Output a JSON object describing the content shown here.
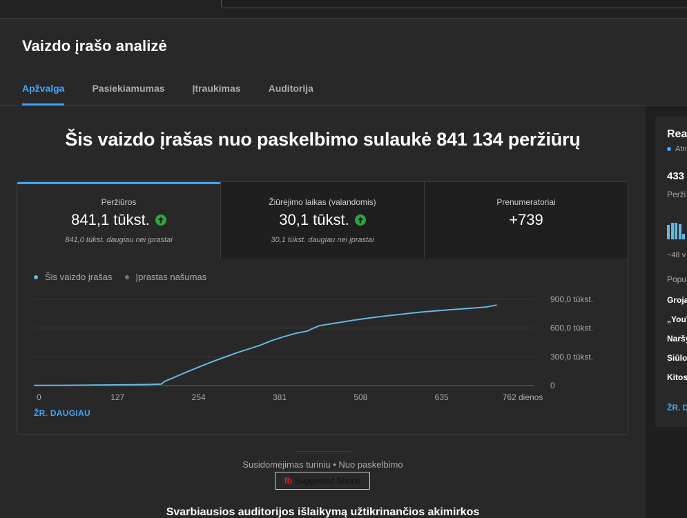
{
  "header": {
    "title": "Vaizdo įrašo analizė",
    "tabs": [
      {
        "label": "Apžvalga",
        "active": true
      },
      {
        "label": "Pasiekiamumas",
        "active": false
      },
      {
        "label": "Įtraukimas",
        "active": false
      },
      {
        "label": "Auditorija",
        "active": false
      }
    ]
  },
  "headline": "Šis vaizdo įrašas nuo paskelbimo sulaukė 841 134 peržiūrų",
  "metrics": [
    {
      "label": "Peržiūros",
      "value": "841,1 tūkst.",
      "sub": "841,0 tūkst. daugiau nei įprastai",
      "trend_icon": "arrow-up-icon"
    },
    {
      "label": "Žiūrėjimo laikas (valandomis)",
      "value": "30,1 tūkst.",
      "sub": "30,1 tūkst. daugiau nei įprastai",
      "trend_icon": "arrow-up-icon"
    },
    {
      "label": "Prenumeratoriai",
      "value": "+739",
      "sub": ""
    }
  ],
  "legend": {
    "this_video": "Šis vaizdo įrašas",
    "typical": "Įprastas našumas"
  },
  "chart_data": {
    "type": "line",
    "x_tick_labels": [
      "0",
      "127",
      "254",
      "381",
      "508",
      "635",
      "762 dienos"
    ],
    "y_tick_labels": [
      "0",
      "300,0 tūkst.",
      "600,0 tūkst.",
      "900,0 tūkst."
    ],
    "xlim": [
      0,
      840
    ],
    "ylim": [
      0,
      900000
    ],
    "grid": true,
    "legend_position": "top-left",
    "series": [
      {
        "name": "Šis vaizdo įrašas",
        "color": "#65b8e0",
        "x": [
          0,
          50,
          100,
          150,
          180,
          200,
          214,
          220,
          230,
          245,
          260,
          280,
          300,
          320,
          340,
          360,
          380,
          400,
          420,
          440,
          460,
          470,
          480,
          500,
          520,
          540,
          560,
          580,
          600,
          620,
          640,
          660,
          680,
          700,
          720,
          740,
          760,
          778
        ],
        "y": [
          2000,
          3000,
          5000,
          8000,
          10000,
          12000,
          15000,
          45000,
          70000,
          110000,
          150000,
          200000,
          250000,
          295000,
          340000,
          380000,
          420000,
          470000,
          510000,
          545000,
          570000,
          600000,
          625000,
          645000,
          665000,
          685000,
          702000,
          718000,
          732000,
          746000,
          760000,
          772000,
          782000,
          792000,
          801000,
          810000,
          820000,
          841134
        ]
      }
    ]
  },
  "see_more_label": "ŽR. DAUGIAU",
  "engagement": {
    "text": "Susidomėjimas turiniu • Nuo paskelbimo",
    "button_logo": "fb",
    "button_label": "Suggested Shorts"
  },
  "bottom_title": "Svarbiausios auditorijos išlaikymą užtikrinančios akimirkos",
  "realtime": {
    "title": "Rea",
    "live": "Atn",
    "value": "433",
    "sub": "Perži",
    "bars": [
      0.75,
      0.85,
      0.85,
      0.78,
      0.3
    ],
    "axis_label": "−48 v",
    "popular_label": "Popu",
    "sources": [
      "Groja",
      "„YouT",
      "Naršy",
      "Siūlo",
      "Kitos"
    ],
    "see_more": "ŽR. D"
  },
  "colors": {
    "accent": "#3ea6ff",
    "series": "#65b8e0",
    "up": "#2ba640",
    "typical_dot": "#777777"
  }
}
